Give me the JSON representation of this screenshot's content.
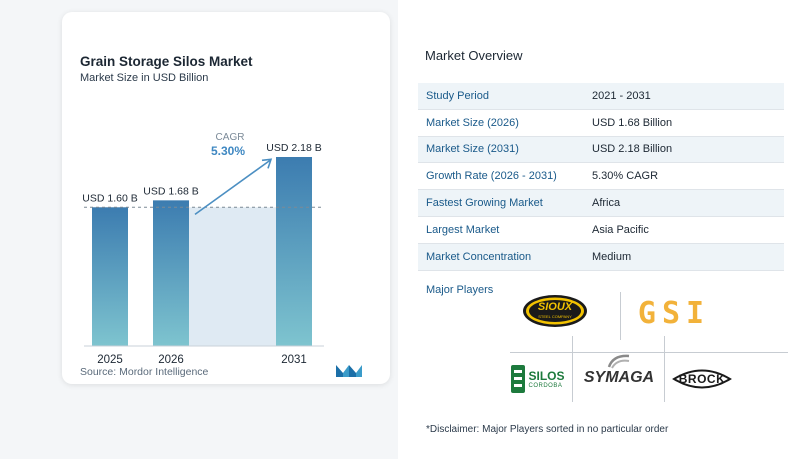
{
  "chart_data": {
    "type": "bar",
    "title": "Grain Storage Silos Market",
    "subtitle": "Market Size in USD Billion",
    "categories": [
      "2025",
      "2026",
      "2031"
    ],
    "values": [
      1.6,
      1.68,
      2.18
    ],
    "data_labels": [
      "USD 1.60 B",
      "USD 1.68 B",
      "USD 2.18 B"
    ],
    "cagr_label": "CAGR",
    "cagr_value": "5.30%",
    "source": "Source:  Mordor Intelligence",
    "colors": {
      "bar_top": "#3c7cb0",
      "bar_bottom": "#7ec4cf",
      "shade": "#dfeaf3",
      "arrow": "#4c8fc2"
    }
  },
  "overview": {
    "title": "Market Overview",
    "rows": [
      {
        "label": "Study Period",
        "value": "2021 - 2031"
      },
      {
        "label": "Market Size (2026)",
        "value": "USD 1.68 Billion"
      },
      {
        "label": "Market Size (2031)",
        "value": "USD 2.18 Billion"
      },
      {
        "label": "Growth Rate (2026 - 2031)",
        "value": "5.30% CAGR"
      },
      {
        "label": "Fastest Growing Market",
        "value": "Africa"
      },
      {
        "label": "Largest Market",
        "value": "Asia Pacific"
      },
      {
        "label": "Market Concentration",
        "value": "Medium"
      }
    ]
  },
  "players": {
    "title": "Major Players",
    "logos": {
      "sioux": "SIOUX",
      "sioux_sub": "STEEL COMPANY",
      "gsi": "GSI",
      "silos": "SILOS",
      "silos_sub": "CORDOBA",
      "symaga": "SYMAGA",
      "brock": "BROCK"
    }
  },
  "disclaimer": "*Disclaimer: Major Players sorted in no particular order"
}
